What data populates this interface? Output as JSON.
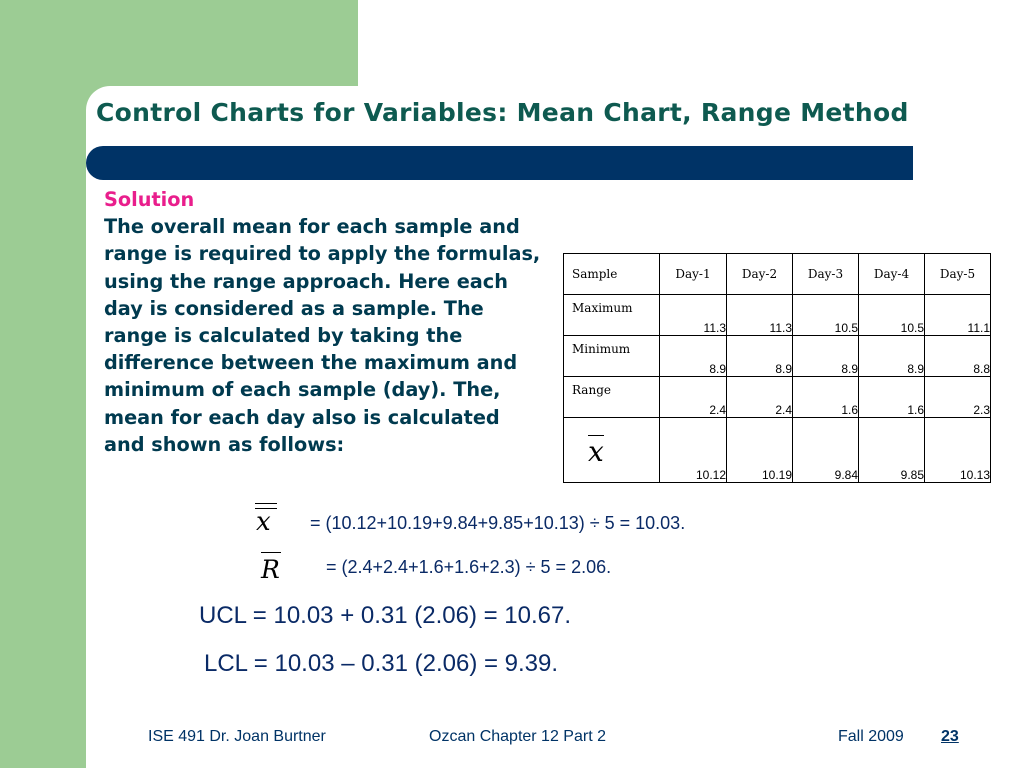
{
  "slide": {
    "title": "Control Charts for Variables: Mean Chart, Range Method",
    "solution_label": "Solution",
    "body": "The overall mean for each sample and range is required to apply the formulas, using the range approach.  Here each day is considered as a sample.  The range is calculated by taking the difference between the maximum and minimum of each sample (day).  The, mean for each day also is calculated and shown as follows:"
  },
  "table": {
    "header": [
      "Sample",
      "Day-1",
      "Day-2",
      "Day-3",
      "Day-4",
      "Day-5"
    ],
    "rows": [
      {
        "label": "Maximum",
        "values": [
          "11.3",
          "11.3",
          "10.5",
          "10.5",
          "11.1"
        ]
      },
      {
        "label": "Minimum",
        "values": [
          "8.9",
          "8.9",
          "8.9",
          "8.9",
          "8.8"
        ]
      },
      {
        "label": "Range",
        "values": [
          "2.4",
          "2.4",
          "1.6",
          "1.6",
          "2.3"
        ]
      },
      {
        "label": "x",
        "values": [
          "10.12",
          "10.19",
          "9.84",
          "9.85",
          "10.13"
        ]
      }
    ]
  },
  "formulas": {
    "xbarbar_symbol": "x",
    "xbarbar_eq": "= (10.12+10.19+9.84+9.85+10.13) ÷ 5 = 10.03.",
    "rbar_symbol": "R",
    "rbar_eq": "= (2.4+2.4+1.6+1.6+2.3) ÷ 5 = 2.06.",
    "ucl": "UCL = 10.03 + 0.31 (2.06) = 10.67.",
    "lcl": "LCL = 10.03 – 0.31 (2.06) =   9.39."
  },
  "footer": {
    "course": "ISE 491  Dr. Joan Burtner",
    "chapter": "Ozcan Chapter 12  Part 2",
    "term": "Fall 2009",
    "page": "23"
  }
}
